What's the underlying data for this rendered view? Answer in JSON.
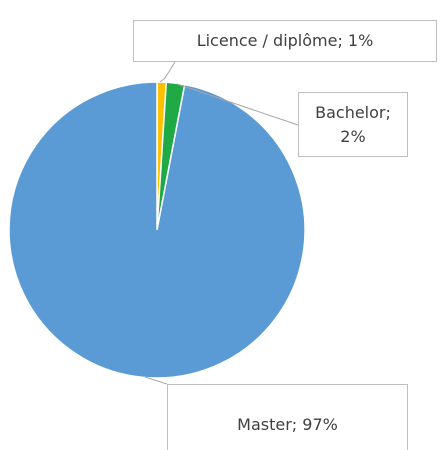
{
  "chart_data": {
    "type": "pie",
    "values": [
      1,
      2,
      97
    ],
    "value_labels": [
      "Licence / diplôme; 1%",
      "Bachelor; 2%",
      "Master; 97%"
    ],
    "colors": [
      "#ffc000",
      "#1faa45",
      "#5b9bd5"
    ]
  }
}
